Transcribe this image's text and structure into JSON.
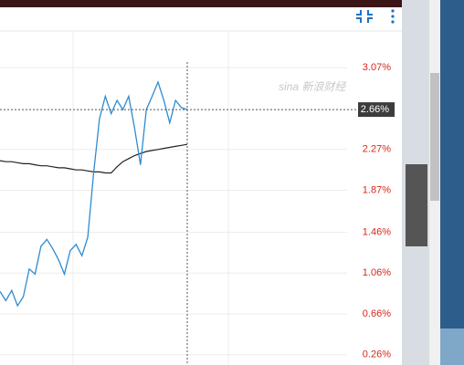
{
  "chart_data": {
    "type": "line",
    "watermark": "sina 新浪财经",
    "categories": [
      null,
      null,
      null,
      null,
      null,
      null,
      null,
      null,
      null,
      null,
      null,
      null,
      null,
      null,
      null,
      null,
      null,
      null,
      null,
      null,
      null,
      null,
      null,
      null,
      null,
      null,
      null,
      null,
      null,
      null,
      null,
      null,
      null
    ],
    "series": [
      {
        "color": "#2e8bd0",
        "values": [
          0.88,
          0.79,
          0.89,
          0.74,
          0.83,
          1.1,
          1.05,
          1.32,
          1.39,
          1.3,
          1.19,
          1.05,
          1.28,
          1.34,
          1.23,
          1.41,
          2.04,
          2.57,
          2.79,
          2.62,
          2.75,
          2.66,
          2.79,
          2.48,
          2.12,
          2.66,
          2.79,
          2.93,
          2.75,
          2.53,
          2.75,
          2.68,
          2.66
        ]
      },
      {
        "color": "#222222",
        "values": [
          2.16,
          2.15,
          2.15,
          2.14,
          2.13,
          2.13,
          2.12,
          2.11,
          2.11,
          2.1,
          2.09,
          2.09,
          2.08,
          2.07,
          2.07,
          2.06,
          2.05,
          2.05,
          2.04,
          2.04,
          2.1,
          2.15,
          2.18,
          2.21,
          2.23,
          2.25,
          2.26,
          2.27,
          2.28,
          2.29,
          2.3,
          2.31,
          2.32
        ]
      }
    ],
    "ylim": [
      0.16,
      3.42
    ],
    "yticks": [
      {
        "value": 3.07,
        "label": "3.07%"
      },
      {
        "value": 2.27,
        "label": "2.27%"
      },
      {
        "value": 1.87,
        "label": "1.87%"
      },
      {
        "value": 1.46,
        "label": "1.46%"
      },
      {
        "value": 1.06,
        "label": "1.06%"
      },
      {
        "value": 0.66,
        "label": "0.66%"
      },
      {
        "value": 0.26,
        "label": "0.26%"
      }
    ],
    "crosshair": {
      "value": 2.66,
      "label": "2.66%"
    },
    "grid": true
  }
}
